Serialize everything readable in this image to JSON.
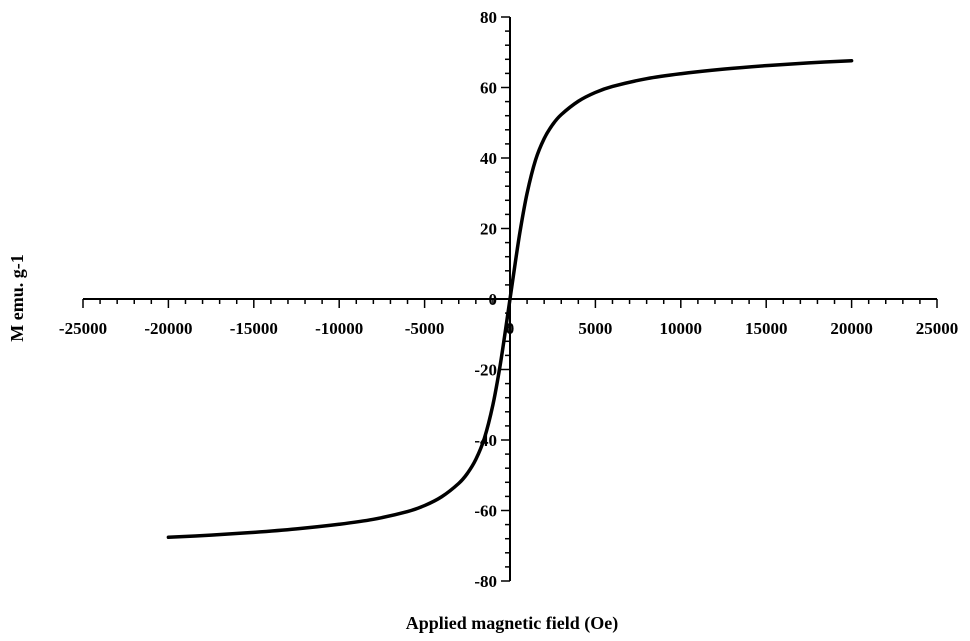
{
  "chart_data": {
    "type": "line",
    "title": "",
    "xlabel": "Applied magnetic field (Oe)",
    "ylabel": "M emu. g-1",
    "xlim": [
      -25000,
      25000
    ],
    "ylim": [
      -80,
      80
    ],
    "x_ticks": [
      -25000,
      -20000,
      -15000,
      -10000,
      -5000,
      0,
      5000,
      10000,
      15000,
      20000,
      25000
    ],
    "x_tick_labels": [
      "-25000",
      "-20000",
      "-15000",
      "-10000",
      "-5000",
      "0",
      "5000",
      "10000",
      "15000",
      "20000",
      "25000"
    ],
    "y_ticks": [
      -80,
      -60,
      -40,
      -20,
      0,
      20,
      40,
      60,
      80
    ],
    "y_tick_labels": [
      "-80",
      "-60",
      "-40",
      "-20",
      "0",
      "20",
      "40",
      "60",
      "80"
    ],
    "grid": false,
    "legend": "none",
    "line_color": "#000000",
    "series": [
      {
        "x": [
          -20000,
          -17500,
          -15000,
          -12500,
          -10000,
          -8000,
          -6000,
          -5000,
          -4000,
          -3000,
          -2500,
          -2000,
          -1500,
          -1000,
          -600,
          -300,
          0,
          300,
          600,
          1000,
          1500,
          2000,
          2500,
          3000,
          4000,
          5000,
          6000,
          8000,
          10000,
          12500,
          15000,
          17500,
          20000
        ],
        "values": [
          -67.6,
          -67.0,
          -66.2,
          -65.2,
          -63.9,
          -62.5,
          -60.3,
          -58.6,
          -56.1,
          -52.3,
          -49.5,
          -45.5,
          -39.5,
          -30.0,
          -19.5,
          -10.0,
          0.0,
          10.0,
          19.5,
          30.0,
          39.5,
          45.5,
          49.5,
          52.3,
          56.1,
          58.6,
          60.3,
          62.5,
          63.9,
          65.2,
          66.2,
          67.0,
          67.6
        ]
      }
    ]
  }
}
